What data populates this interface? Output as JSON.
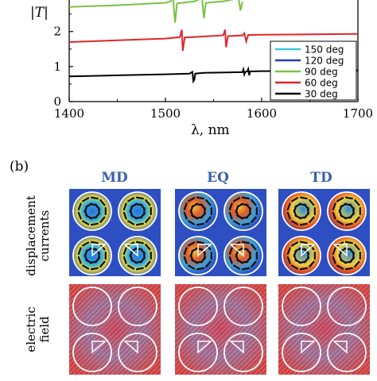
{
  "panel_a": {
    "y_axis_label": "|T|",
    "x_axis_label": "λ, nm",
    "x_ticks": [
      "1400",
      "1500",
      "1600",
      "1700"
    ],
    "y_ticks": [
      "0",
      "1",
      "2"
    ],
    "legend": [
      "150 deg",
      "120 deg",
      "90 deg",
      "60 deg",
      "30 deg"
    ],
    "colors": [
      "#3fc6d6",
      "#1f3ea8",
      "#7ac143",
      "#e0262a",
      "#000000"
    ]
  },
  "panel_b": {
    "label": "(b)",
    "columns": [
      "MD",
      "EQ",
      "TD"
    ],
    "rows": [
      {
        "line1": "displacement",
        "line2": "currents"
      },
      {
        "line1": "electric",
        "line2": "field"
      }
    ]
  },
  "chart_data": {
    "type": "line",
    "xlabel": "λ, nm",
    "ylabel": "|T|",
    "xlim": [
      1400,
      1700
    ],
    "ylim": [
      0,
      2.9
    ],
    "x_ticks": [
      1400,
      1500,
      1600,
      1700
    ],
    "y_ticks": [
      0,
      1,
      2
    ],
    "legend_position": "right",
    "series": [
      {
        "name": "30 deg",
        "color": "#000000",
        "x": [
          1400,
          1450,
          1500,
          1525,
          1528,
          1529,
          1530,
          1531,
          1540,
          1580,
          1581,
          1582,
          1583,
          1585,
          1586,
          1587,
          1588,
          1600,
          1650,
          1700
        ],
        "y": [
          0.72,
          0.75,
          0.78,
          0.8,
          0.85,
          0.58,
          0.62,
          0.8,
          0.82,
          0.84,
          0.92,
          0.78,
          0.85,
          0.86,
          0.93,
          0.75,
          0.86,
          0.87,
          0.88,
          0.89
        ]
      },
      {
        "name": "60 deg",
        "color": "#e0262a",
        "x": [
          1400,
          1450,
          1500,
          1515,
          1517,
          1518,
          1520,
          1540,
          1560,
          1562,
          1563,
          1565,
          1580,
          1582,
          1584,
          1586,
          1600,
          1650,
          1700
        ],
        "y": [
          1.7,
          1.75,
          1.8,
          1.84,
          2.05,
          1.45,
          1.83,
          1.86,
          1.89,
          2.05,
          1.55,
          1.87,
          1.89,
          1.95,
          1.72,
          1.9,
          1.91,
          1.92,
          1.93
        ]
      },
      {
        "name": "90 deg",
        "color": "#7ac143",
        "x": [
          1400,
          1450,
          1500,
          1505,
          1508,
          1510,
          1512,
          1530,
          1538,
          1540,
          1542,
          1560,
          1576,
          1578,
          1580
        ],
        "y": [
          2.7,
          2.75,
          2.82,
          2.86,
          2.95,
          2.25,
          2.8,
          2.86,
          2.95,
          2.38,
          2.82,
          2.86,
          2.95,
          2.6,
          2.85
        ]
      }
    ]
  }
}
